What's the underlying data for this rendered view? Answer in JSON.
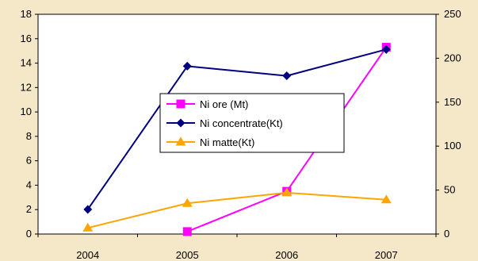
{
  "chart_data": {
    "type": "line",
    "categories": [
      "2004",
      "2005",
      "2006",
      "2007"
    ],
    "left_axis": {
      "ylim": [
        0,
        18
      ],
      "ticks": [
        0,
        2,
        4,
        6,
        8,
        10,
        12,
        14,
        16,
        18
      ]
    },
    "right_axis": {
      "ylim": [
        0,
        250
      ],
      "ticks": [
        0,
        50,
        100,
        150,
        200,
        250
      ]
    },
    "series": [
      {
        "name": "Ni ore (Mt)",
        "axis": "left",
        "color": "#ff00ff",
        "marker": "square",
        "values": [
          null,
          0.2,
          3.5,
          15.3
        ]
      },
      {
        "name": "Ni concentrate(Kt)",
        "axis": "right",
        "color": "#000080",
        "marker": "diamond",
        "values": [
          28,
          191,
          180,
          210
        ]
      },
      {
        "name": "Ni matte(Kt)",
        "axis": "right",
        "color": "#ffa500",
        "marker": "triangle",
        "values": [
          7,
          35,
          47,
          39
        ]
      }
    ],
    "legend": "center",
    "grid": false
  }
}
